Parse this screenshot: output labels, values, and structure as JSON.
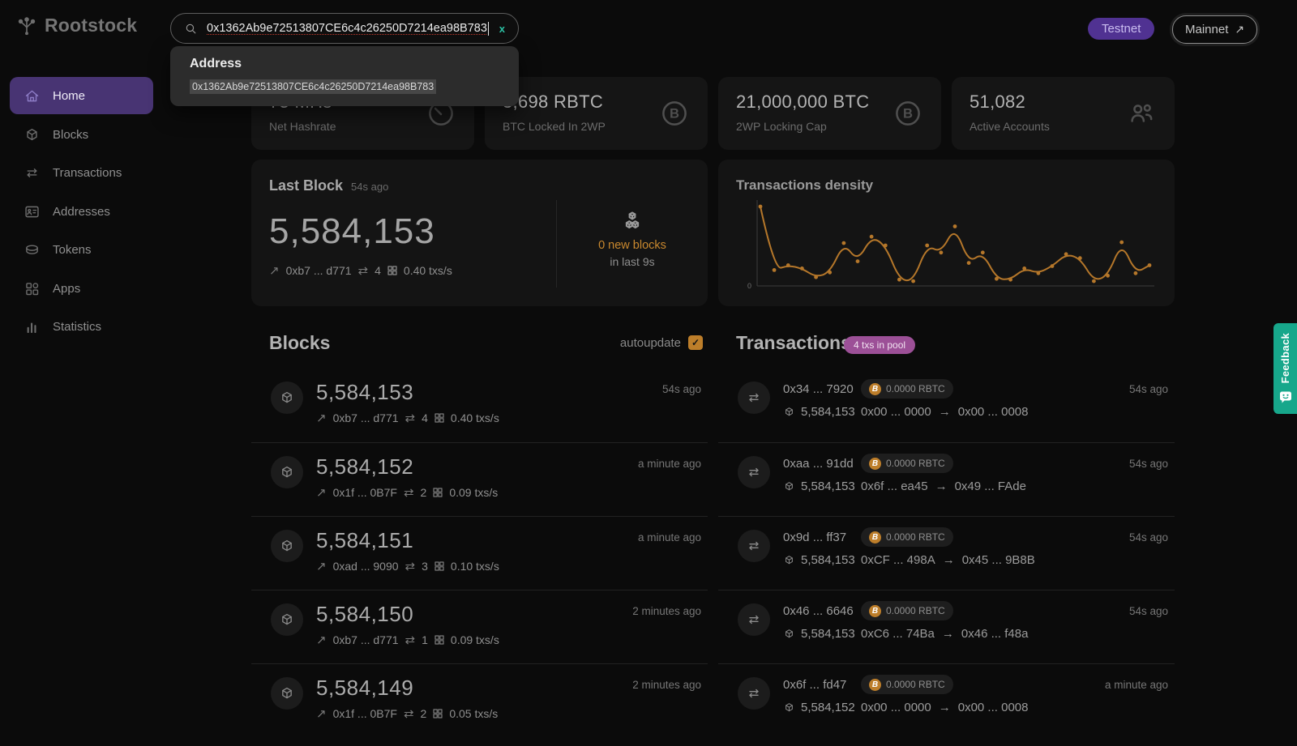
{
  "brand": {
    "name": "Rootstock"
  },
  "colors": {
    "page_bg": "#0b0b0b",
    "card_bg": "#151515",
    "accent_purple": "#503292",
    "active_nav_purple": "#483473",
    "accent_orange": "#bd7e2a",
    "accent_teal": "#17a78b",
    "pool_badge_pink": "#9c5097"
  },
  "glyphs": {
    "ne_arrow": "↗",
    "swap_arrows": "⇄",
    "arrow_right": "→",
    "check": "✓",
    "clear": "x",
    "btc": "B"
  },
  "header": {
    "search_value": "0x1362Ab9e72513807CE6c4c26250D7214ea98B783",
    "dropdown": {
      "title": "Address",
      "result": "0x1362Ab9e72513807CE6c4c26250D7214ea98B783"
    },
    "testnet_label": "Testnet",
    "mainnet_label": "Mainnet"
  },
  "sidebar": {
    "items": [
      {
        "label": "Home",
        "active": true
      },
      {
        "label": "Blocks"
      },
      {
        "label": "Transactions"
      },
      {
        "label": "Addresses"
      },
      {
        "label": "Tokens"
      },
      {
        "label": "Apps"
      },
      {
        "label": "Statistics"
      }
    ]
  },
  "stats": [
    {
      "value": "75 MHs",
      "label": "Net Hashrate",
      "icon": "gauge-icon"
    },
    {
      "value": "3,698 RBTC",
      "label": "BTC Locked In 2WP",
      "icon": "bitcoin-icon"
    },
    {
      "value": "21,000,000 BTC",
      "label": "2WP Locking Cap",
      "icon": "bitcoin-icon"
    },
    {
      "value": "51,082",
      "label": "Active Accounts",
      "icon": "people-icon"
    }
  ],
  "last_block": {
    "title": "Last Block",
    "ago": "54s ago",
    "number": "5,584,153",
    "hash": "0xb7 ... d771",
    "tx_count": "4",
    "rate": "0.40 txs/s",
    "new_blocks": "0 new blocks",
    "new_blocks_window": "in last 9s"
  },
  "density": {
    "title": "Transactions density"
  },
  "chart_data": {
    "type": "line",
    "title": "Transactions density",
    "xlabel": "",
    "ylabel": "",
    "ylim": [
      0,
      100
    ],
    "grid": false,
    "legend": "none",
    "color": "#b5772a",
    "y_axis_tick_labels": [
      "0"
    ],
    "values": [
      100,
      20,
      26,
      22,
      11,
      17,
      54,
      31,
      62,
      51,
      8,
      6,
      51,
      42,
      75,
      29,
      42,
      9,
      8,
      22,
      16,
      25,
      40,
      35,
      6,
      13,
      55,
      16,
      26
    ]
  },
  "blocks": {
    "title": "Blocks",
    "autoupdate_label": "autoupdate",
    "autoupdate_checked": true,
    "rows": [
      {
        "number": "5,584,153",
        "hash": "0xb7 ... d771",
        "tx_count": "4",
        "rate": "0.40 txs/s",
        "time": "54s ago"
      },
      {
        "number": "5,584,152",
        "hash": "0x1f ... 0B7F",
        "tx_count": "2",
        "rate": "0.09 txs/s",
        "time": "a minute ago"
      },
      {
        "number": "5,584,151",
        "hash": "0xad ... 9090",
        "tx_count": "3",
        "rate": "0.10 txs/s",
        "time": "a minute ago"
      },
      {
        "number": "5,584,150",
        "hash": "0xb7 ... d771",
        "tx_count": "1",
        "rate": "0.09 txs/s",
        "time": "2 minutes ago"
      },
      {
        "number": "5,584,149",
        "hash": "0x1f ... 0B7F",
        "tx_count": "2",
        "rate": "0.05 txs/s",
        "time": "2 minutes ago"
      }
    ]
  },
  "transactions": {
    "title": "Transactions",
    "pool_badge": "4 txs in pool",
    "rows": [
      {
        "hash": "0x34 ... 7920",
        "block": "5,584,153",
        "amount": "0.0000 RBTC",
        "from": "0x00 ... 0000",
        "to": "0x00 ... 0008",
        "time": "54s ago"
      },
      {
        "hash": "0xaa ... 91dd",
        "block": "5,584,153",
        "amount": "0.0000 RBTC",
        "from": "0x6f ... ea45",
        "to": "0x49 ... FAde",
        "time": "54s ago"
      },
      {
        "hash": "0x9d ... ff37",
        "block": "5,584,153",
        "amount": "0.0000 RBTC",
        "from": "0xCF ... 498A",
        "to": "0x45 ... 9B8B",
        "time": "54s ago"
      },
      {
        "hash": "0x46 ... 6646",
        "block": "5,584,153",
        "amount": "0.0000 RBTC",
        "from": "0xC6 ... 74Ba",
        "to": "0x46 ... f48a",
        "time": "54s ago"
      },
      {
        "hash": "0x6f ... fd47",
        "block": "5,584,152",
        "amount": "0.0000 RBTC",
        "from": "0x00 ... 0000",
        "to": "0x00 ... 0008",
        "time": "a minute ago"
      }
    ]
  },
  "feedback": {
    "label": "Feedback"
  }
}
